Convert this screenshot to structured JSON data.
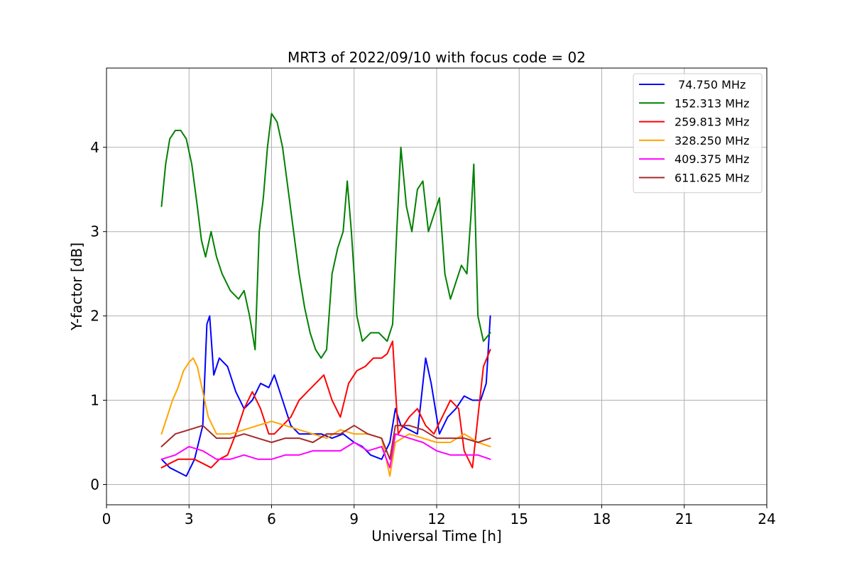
{
  "chart_data": {
    "type": "line",
    "title": "MRT3 of 2022/09/10 with focus code = 02",
    "xlabel": "Universal Time [h]",
    "ylabel": "Y-factor [dB]",
    "xlim": [
      0,
      24
    ],
    "ylim": [
      -0.24,
      4.94
    ],
    "xticks": [
      0,
      3,
      6,
      9,
      12,
      15,
      18,
      21,
      24
    ],
    "xtick_labels": [
      "0",
      "3",
      "6",
      "9",
      "12",
      "15",
      "18",
      "21",
      "24"
    ],
    "yticks": [
      0,
      1,
      2,
      3,
      4
    ],
    "ytick_labels": [
      "0",
      "1",
      "2",
      "3",
      "4"
    ],
    "grid": true,
    "legend_position": "top-right",
    "series": [
      {
        "name": " 74.750 MHz",
        "color": "#0000ff",
        "x": [
          2.0,
          2.3,
          2.6,
          2.9,
          3.2,
          3.5,
          3.65,
          3.75,
          3.9,
          4.1,
          4.4,
          4.7,
          5.0,
          5.3,
          5.6,
          5.9,
          6.1,
          6.4,
          6.7,
          7.0,
          7.4,
          7.8,
          8.2,
          8.6,
          9.0,
          9.3,
          9.6,
          10.0,
          10.3,
          10.5,
          10.7,
          11.0,
          11.3,
          11.6,
          11.8,
          12.1,
          12.4,
          12.7,
          13.0,
          13.3,
          13.6,
          13.8,
          13.95
        ],
        "values": [
          0.3,
          0.2,
          0.15,
          0.1,
          0.3,
          0.7,
          1.9,
          2.0,
          1.3,
          1.5,
          1.4,
          1.1,
          0.9,
          1.0,
          1.2,
          1.15,
          1.3,
          1.0,
          0.7,
          0.6,
          0.6,
          0.6,
          0.55,
          0.6,
          0.5,
          0.45,
          0.35,
          0.3,
          0.5,
          0.9,
          0.7,
          0.65,
          0.6,
          1.5,
          1.2,
          0.6,
          0.8,
          0.9,
          1.05,
          1.0,
          1.0,
          1.2,
          2.0
        ]
      },
      {
        "name": "152.313 MHz",
        "color": "#008000",
        "x": [
          2.0,
          2.15,
          2.3,
          2.5,
          2.7,
          2.9,
          3.1,
          3.3,
          3.45,
          3.6,
          3.8,
          4.0,
          4.2,
          4.5,
          4.8,
          5.0,
          5.2,
          5.4,
          5.55,
          5.7,
          5.85,
          6.0,
          6.2,
          6.4,
          6.6,
          6.8,
          7.0,
          7.2,
          7.4,
          7.6,
          7.8,
          8.0,
          8.2,
          8.4,
          8.6,
          8.75,
          8.9,
          9.1,
          9.3,
          9.6,
          9.9,
          10.2,
          10.4,
          10.55,
          10.7,
          10.9,
          11.1,
          11.3,
          11.5,
          11.7,
          11.9,
          12.1,
          12.3,
          12.5,
          12.7,
          12.9,
          13.1,
          13.25,
          13.35,
          13.5,
          13.7,
          13.95
        ],
        "values": [
          3.3,
          3.8,
          4.1,
          4.2,
          4.2,
          4.1,
          3.8,
          3.3,
          2.9,
          2.7,
          3.0,
          2.7,
          2.5,
          2.3,
          2.2,
          2.3,
          2.0,
          1.6,
          3.0,
          3.4,
          4.0,
          4.4,
          4.3,
          4.0,
          3.5,
          3.0,
          2.5,
          2.1,
          1.8,
          1.6,
          1.5,
          1.6,
          2.5,
          2.8,
          3.0,
          3.6,
          3.0,
          2.0,
          1.7,
          1.8,
          1.8,
          1.7,
          1.9,
          3.0,
          4.0,
          3.3,
          3.0,
          3.5,
          3.6,
          3.0,
          3.2,
          3.4,
          2.5,
          2.2,
          2.4,
          2.6,
          2.5,
          3.2,
          3.8,
          2.0,
          1.7,
          1.8
        ]
      },
      {
        "name": "259.813 MHz",
        "color": "#ff0000",
        "x": [
          2.0,
          2.3,
          2.6,
          2.9,
          3.2,
          3.5,
          3.8,
          4.1,
          4.4,
          4.7,
          5.0,
          5.3,
          5.6,
          5.9,
          6.1,
          6.4,
          6.7,
          7.0,
          7.3,
          7.6,
          7.9,
          8.2,
          8.5,
          8.8,
          9.1,
          9.4,
          9.7,
          10.0,
          10.2,
          10.4,
          10.6,
          10.8,
          11.0,
          11.3,
          11.6,
          11.9,
          12.2,
          12.5,
          12.8,
          13.0,
          13.3,
          13.5,
          13.7,
          13.95
        ],
        "values": [
          0.2,
          0.25,
          0.3,
          0.3,
          0.3,
          0.25,
          0.2,
          0.3,
          0.35,
          0.6,
          0.9,
          1.1,
          0.9,
          0.6,
          0.6,
          0.7,
          0.8,
          1.0,
          1.1,
          1.2,
          1.3,
          1.0,
          0.8,
          1.2,
          1.35,
          1.4,
          1.5,
          1.5,
          1.55,
          1.7,
          0.6,
          0.7,
          0.8,
          0.9,
          0.7,
          0.6,
          0.8,
          1.0,
          0.9,
          0.4,
          0.2,
          0.8,
          1.4,
          1.6
        ]
      },
      {
        "name": "328.250 MHz",
        "color": "#ffa500",
        "x": [
          2.0,
          2.2,
          2.4,
          2.6,
          2.8,
          3.0,
          3.15,
          3.3,
          3.5,
          3.7,
          4.0,
          4.5,
          5.0,
          5.5,
          6.0,
          6.5,
          7.0,
          7.5,
          8.0,
          8.5,
          9.0,
          9.5,
          10.0,
          10.3,
          10.5,
          11.0,
          11.5,
          12.0,
          12.5,
          13.0,
          13.5,
          13.95
        ],
        "values": [
          0.6,
          0.8,
          1.0,
          1.15,
          1.35,
          1.45,
          1.5,
          1.4,
          1.1,
          0.8,
          0.6,
          0.6,
          0.65,
          0.7,
          0.75,
          0.7,
          0.65,
          0.6,
          0.55,
          0.65,
          0.6,
          0.6,
          0.55,
          0.1,
          0.5,
          0.6,
          0.55,
          0.5,
          0.5,
          0.6,
          0.5,
          0.45
        ]
      },
      {
        "name": "409.375 MHz",
        "color": "#ff00ff",
        "x": [
          2.0,
          2.5,
          3.0,
          3.5,
          4.0,
          4.5,
          5.0,
          5.5,
          6.0,
          6.5,
          7.0,
          7.5,
          8.0,
          8.5,
          9.0,
          9.5,
          10.0,
          10.3,
          10.5,
          11.0,
          11.5,
          12.0,
          12.5,
          13.0,
          13.5,
          13.95
        ],
        "values": [
          0.3,
          0.35,
          0.45,
          0.4,
          0.3,
          0.3,
          0.35,
          0.3,
          0.3,
          0.35,
          0.35,
          0.4,
          0.4,
          0.4,
          0.5,
          0.4,
          0.45,
          0.2,
          0.6,
          0.55,
          0.5,
          0.4,
          0.35,
          0.35,
          0.35,
          0.3
        ]
      },
      {
        "name": "611.625 MHz",
        "color": "#a52a2a",
        "x": [
          2.0,
          2.5,
          3.0,
          3.5,
          4.0,
          4.5,
          5.0,
          5.5,
          6.0,
          6.5,
          7.0,
          7.5,
          8.0,
          8.5,
          9.0,
          9.5,
          10.0,
          10.3,
          10.5,
          11.0,
          11.5,
          12.0,
          12.5,
          13.0,
          13.5,
          13.95
        ],
        "values": [
          0.45,
          0.6,
          0.65,
          0.7,
          0.55,
          0.55,
          0.6,
          0.55,
          0.5,
          0.55,
          0.55,
          0.5,
          0.6,
          0.6,
          0.7,
          0.6,
          0.55,
          0.3,
          0.7,
          0.7,
          0.65,
          0.55,
          0.55,
          0.55,
          0.5,
          0.55
        ]
      }
    ]
  }
}
